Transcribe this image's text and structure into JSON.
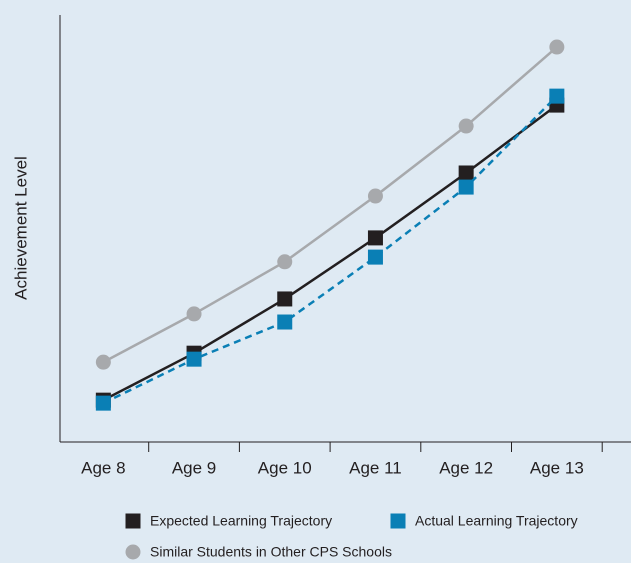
{
  "chart_data": {
    "type": "line",
    "y_label": "Achievement Level",
    "categories": [
      "Age 8",
      "Age 9",
      "Age 10",
      "Age 11",
      "Age 12",
      "Age 13"
    ],
    "ylim": [
      0,
      100
    ],
    "series": [
      {
        "name": "Similar Students in Other CPS Schools",
        "color": "#a7a9ac",
        "marker": "circle",
        "dashed": false,
        "values": [
          18.7,
          30.0,
          42.2,
          57.6,
          74.0,
          92.5
        ]
      },
      {
        "name": "Expected Learning Trajectory",
        "color": "#231f20",
        "marker": "square",
        "dashed": false,
        "values": [
          9.8,
          20.8,
          33.5,
          47.8,
          63.0,
          78.9
        ]
      },
      {
        "name": "Actual Learning Trajectory",
        "color": "#0a7fb5",
        "marker": "square",
        "dashed": true,
        "values": [
          9.1,
          19.4,
          28.1,
          43.3,
          59.7,
          81.0
        ]
      }
    ]
  }
}
